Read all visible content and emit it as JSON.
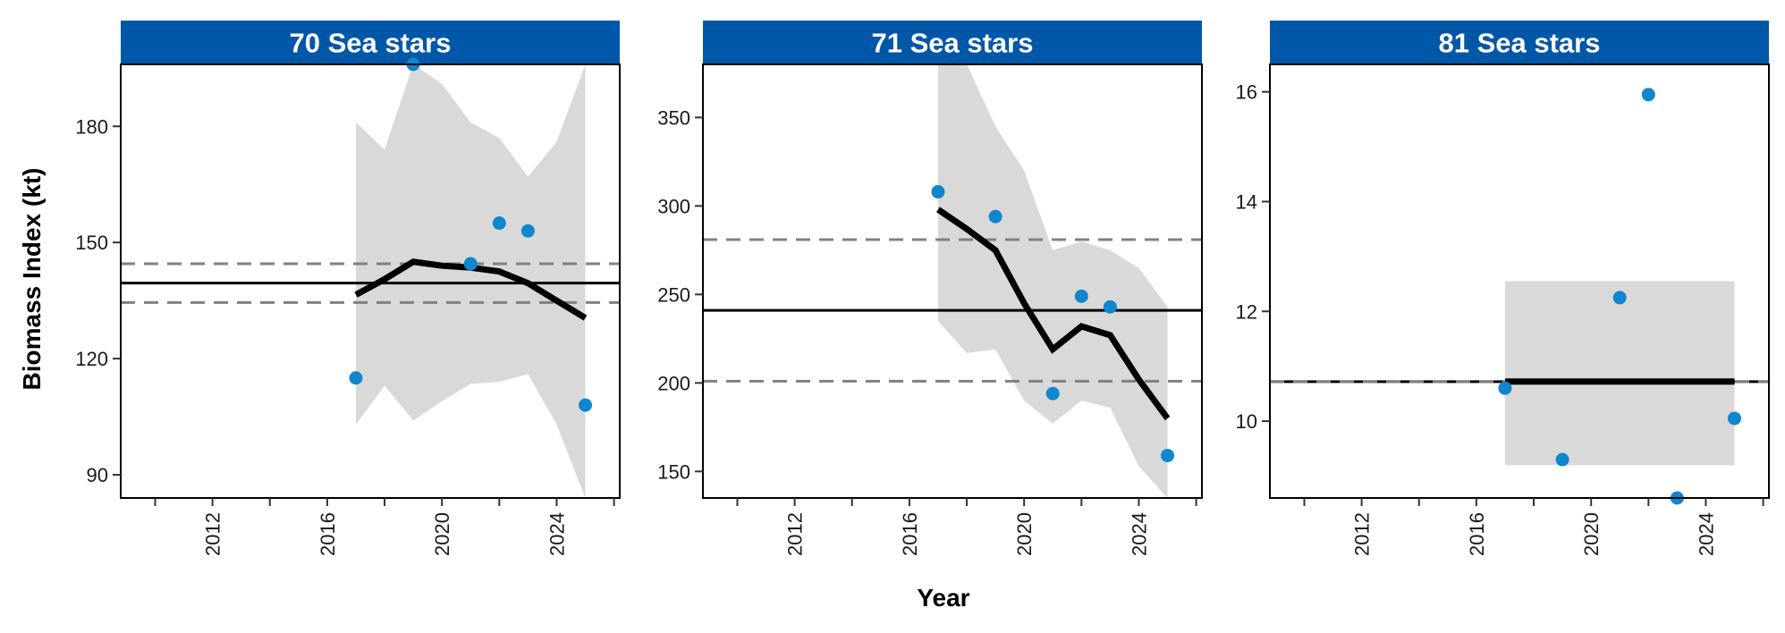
{
  "figure": {
    "xlabel": "Year",
    "ylabel": "Biomass Index (kt)"
  },
  "colors": {
    "strip_bg": "#0057A8",
    "strip_text": "#ffffff",
    "points": "#0F86CE",
    "ribbon": "#D9D9D9",
    "trend_line": "#000000",
    "mean_line": "#000000",
    "bounds_line": "#808080"
  },
  "chart_data": [
    {
      "type": "line",
      "title": "70 Sea stars",
      "xlim": [
        2008.8,
        2026.2
      ],
      "ylim": [
        84,
        196
      ],
      "xticks": [
        2010,
        2012,
        2014,
        2016,
        2018,
        2020,
        2022,
        2024,
        2026
      ],
      "xtick_labels": [
        "2012",
        "2016",
        "2020",
        "2024"
      ],
      "xtick_label_values": [
        2012,
        2016,
        2020,
        2024
      ],
      "yticks": [
        90,
        120,
        150,
        180
      ],
      "ytick_labels": [
        "90",
        "120",
        "150",
        "180"
      ],
      "points": {
        "x": [
          2017,
          2019,
          2021,
          2022,
          2023,
          2025
        ],
        "y": [
          115,
          196,
          144.5,
          155,
          153,
          108
        ]
      },
      "trend": {
        "x": [
          2017,
          2018,
          2019,
          2020,
          2021,
          2022,
          2023,
          2024,
          2025
        ],
        "y": [
          136.5,
          140.5,
          145,
          144,
          143.5,
          142.5,
          139.5,
          135,
          130.5
        ]
      },
      "ribbon": {
        "x": [
          2017,
          2018,
          2019,
          2020,
          2021,
          2022,
          2023,
          2024,
          2025
        ],
        "lower": [
          103,
          113,
          104,
          109,
          113.5,
          114,
          116,
          103,
          84
        ],
        "upper": [
          181,
          174,
          201,
          191,
          181,
          177,
          167,
          176,
          215
        ]
      },
      "mean": 139.5,
      "lower_bound": 134.5,
      "upper_bound": 144.5
    },
    {
      "type": "line",
      "title": "71 Sea stars",
      "xlim": [
        2008.8,
        2026.2
      ],
      "ylim": [
        135,
        380
      ],
      "xticks": [
        2010,
        2012,
        2014,
        2016,
        2018,
        2020,
        2022,
        2024,
        2026
      ],
      "xtick_labels": [
        "2012",
        "2016",
        "2020",
        "2024"
      ],
      "xtick_label_values": [
        2012,
        2016,
        2020,
        2024
      ],
      "yticks": [
        150,
        200,
        250,
        300,
        350
      ],
      "ytick_labels": [
        "150",
        "200",
        "250",
        "300",
        "350"
      ],
      "points": {
        "x": [
          2017,
          2019,
          2021,
          2022,
          2023,
          2025
        ],
        "y": [
          308,
          294,
          194,
          249,
          243,
          159
        ]
      },
      "trend": {
        "x": [
          2017,
          2018,
          2019,
          2020,
          2021,
          2022,
          2023,
          2024,
          2025
        ],
        "y": [
          298,
          287,
          275,
          245,
          219,
          232,
          227,
          202,
          180
        ]
      },
      "ribbon": {
        "x": [
          2017,
          2018,
          2019,
          2020,
          2021,
          2022,
          2023,
          2024,
          2025
        ],
        "lower": [
          235,
          217,
          219,
          190,
          177,
          190,
          186,
          153,
          135
        ],
        "upper": [
          380,
          380,
          345,
          320,
          275,
          280,
          275,
          265,
          243
        ]
      },
      "mean": 241,
      "lower_bound": 201,
      "upper_bound": 281
    },
    {
      "type": "line",
      "title": "81 Sea stars",
      "xlim": [
        2008.8,
        2026.2
      ],
      "ylim": [
        8.6,
        16.5
      ],
      "xticks": [
        2010,
        2012,
        2014,
        2016,
        2018,
        2020,
        2022,
        2024,
        2026
      ],
      "xtick_labels": [
        "2012",
        "2016",
        "2020",
        "2024"
      ],
      "xtick_label_values": [
        2012,
        2016,
        2020,
        2024
      ],
      "yticks": [
        10,
        12,
        14,
        16
      ],
      "ytick_labels": [
        "10",
        "12",
        "14",
        "16"
      ],
      "points": {
        "x": [
          2017,
          2019,
          2021,
          2022,
          2023,
          2025
        ],
        "y": [
          10.6,
          9.3,
          12.25,
          15.95,
          8.6,
          10.05
        ]
      },
      "trend": {
        "x": [
          2017,
          2025
        ],
        "y": [
          10.72,
          10.72
        ]
      },
      "ribbon": {
        "x": [
          2017,
          2025
        ],
        "lower": [
          9.2,
          9.2
        ],
        "upper": [
          12.55,
          12.55
        ]
      },
      "mean": 10.72,
      "lower_bound": 10.72,
      "upper_bound": 10.72
    }
  ]
}
